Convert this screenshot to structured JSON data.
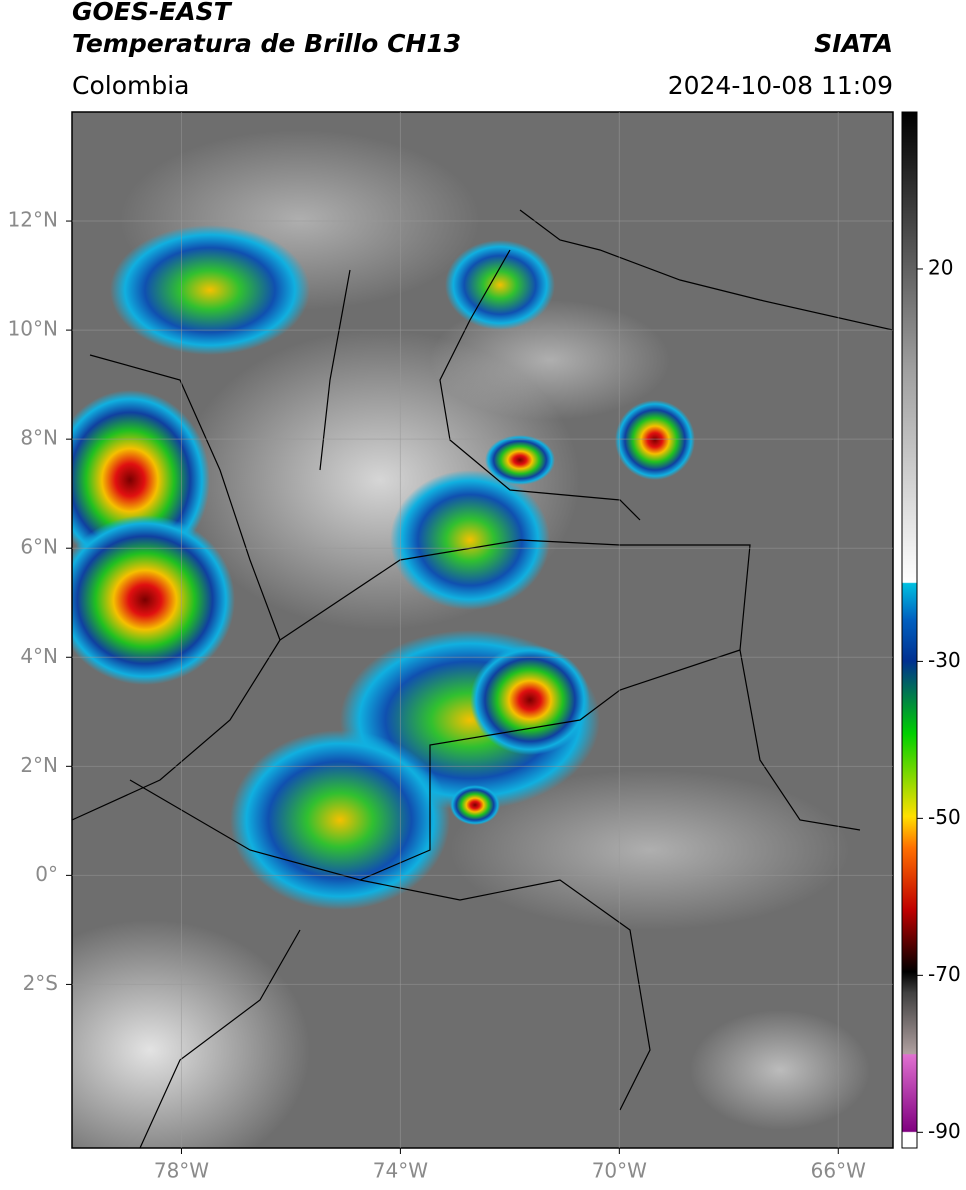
{
  "header": {
    "satellite": "GOES-EAST",
    "product": "Temperatura de Brillo CH13",
    "source": "SIATA",
    "region": "Colombia",
    "timestamp": "2024-10-08 11:09"
  },
  "map": {
    "xlim": [
      -80,
      -65
    ],
    "ylim": [
      -5,
      14
    ],
    "xticks": [
      {
        "value": -78,
        "label": "78°W"
      },
      {
        "value": -74,
        "label": "74°W"
      },
      {
        "value": -70,
        "label": "70°W"
      },
      {
        "value": -66,
        "label": "66°W"
      }
    ],
    "yticks": [
      {
        "value": 12,
        "label": "12°N"
      },
      {
        "value": 10,
        "label": "10°N"
      },
      {
        "value": 8,
        "label": "8°N"
      },
      {
        "value": 6,
        "label": "6°N"
      },
      {
        "value": 4,
        "label": "4°N"
      },
      {
        "value": 2,
        "label": "2°N"
      },
      {
        "value": 0,
        "label": "0°"
      },
      {
        "value": -2,
        "label": "2°S"
      }
    ]
  },
  "colorbar": {
    "lim": [
      -92,
      40
    ],
    "ticks": [
      20,
      -30,
      -50,
      -70,
      -90
    ]
  }
}
